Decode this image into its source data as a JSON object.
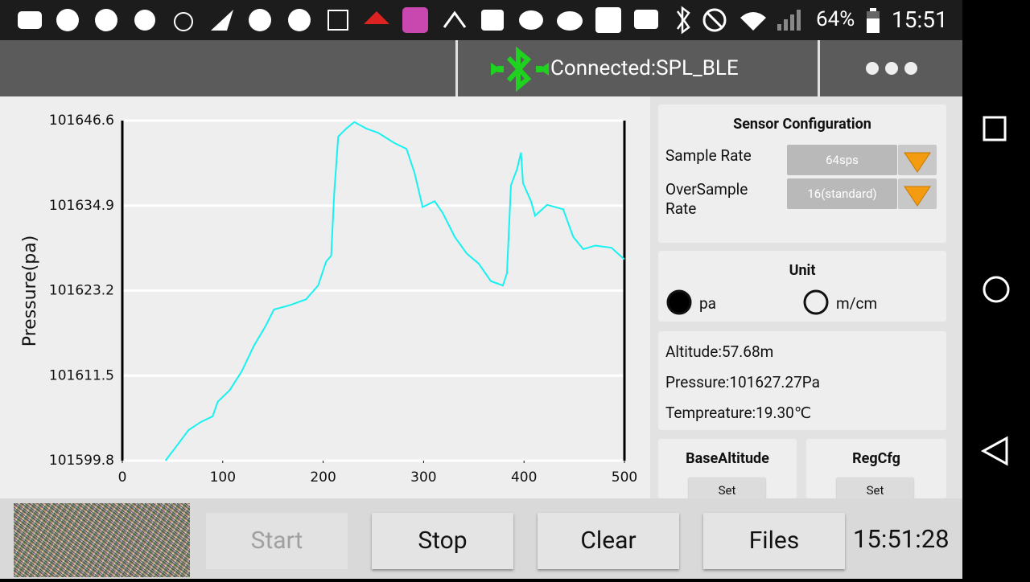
{
  "status_bar": {
    "battery": "64%",
    "time": "15:51"
  },
  "app_bar": {
    "connection": "Connected:SPL_BLE"
  },
  "chart_data": {
    "type": "line",
    "ylabel": "Pressure(pa)",
    "x": [
      43,
      54,
      66,
      78,
      90,
      95,
      107,
      119,
      131,
      143,
      151,
      167,
      183,
      195,
      203,
      208,
      211,
      215,
      223,
      231,
      243,
      255,
      271,
      283,
      291,
      299,
      311,
      319,
      331,
      343,
      355,
      367,
      379,
      383,
      387,
      393,
      397,
      399,
      407,
      411,
      423,
      439,
      449,
      459,
      471,
      487,
      500
    ],
    "series": [
      {
        "color": "#19f0f0",
        "values": [
          101599.8,
          101601.8,
          101604.0,
          101605.1,
          101605.9,
          101607.9,
          101609.5,
          101612.1,
          101615.6,
          101618.4,
          101620.6,
          101621.2,
          101622.0,
          101623.9,
          101627.2,
          101628.0,
          101636.6,
          101644.4,
          101645.5,
          101646.4,
          101645.5,
          101644.9,
          101643.5,
          101642.7,
          101639.4,
          101634.7,
          101635.5,
          101633.9,
          101630.6,
          101628.3,
          101626.9,
          101624.5,
          101623.9,
          101625.6,
          101637.7,
          101639.9,
          101642.2,
          101638.0,
          101635.5,
          101633.5,
          101635.0,
          101634.4,
          101630.6,
          101628.9,
          101629.4,
          101629.1,
          101627.5
        ]
      }
    ],
    "xlim": [
      0,
      500
    ],
    "xticks": [
      0,
      100,
      200,
      300,
      400,
      500
    ],
    "ylim": [
      101599.8,
      101646.6
    ],
    "yticks": [
      101599.8,
      101611.5,
      101623.2,
      101634.9,
      101646.6
    ],
    "grid": true
  },
  "sensor_config": {
    "title": "Sensor Configuration",
    "sample_rate": {
      "label": "Sample Rate",
      "value": "64sps"
    },
    "oversample_rate": {
      "label": "OverSample Rate",
      "value": "16(standard)"
    }
  },
  "unit": {
    "title": "Unit",
    "options": [
      "pa",
      "m/cm"
    ],
    "selected": 0
  },
  "readings": [
    "Altitude:57.68m",
    "Pressure:101627.27Pa",
    "Tempreature:19.30℃"
  ],
  "base_altitude": {
    "title": "BaseAltitude",
    "button": "Set"
  },
  "reg_cfg": {
    "title": "RegCfg",
    "button": "Set"
  },
  "buttons": [
    {
      "label": "Start",
      "enabled": false
    },
    {
      "label": "Stop",
      "enabled": true
    },
    {
      "label": "Clear",
      "enabled": true
    },
    {
      "label": "Files",
      "enabled": true
    }
  ],
  "clock": "15:51:28"
}
